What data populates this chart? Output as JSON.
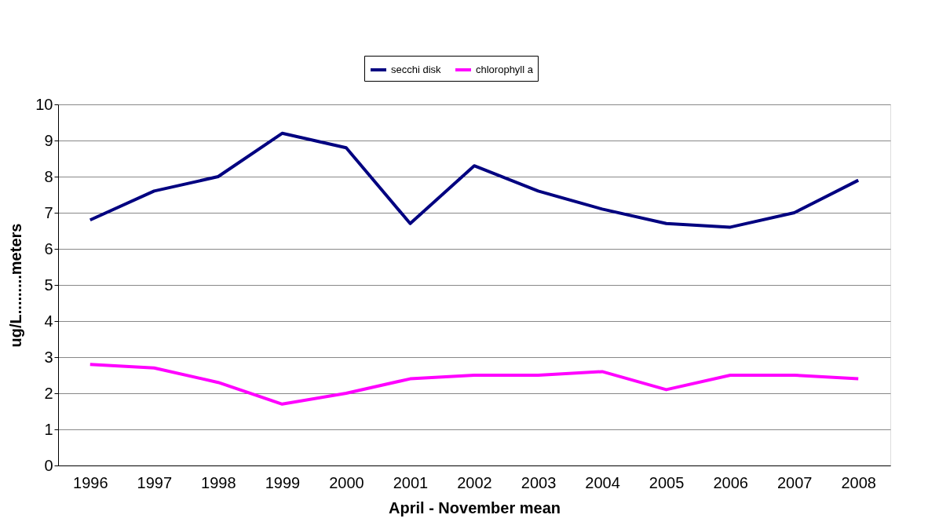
{
  "chart_data": {
    "type": "line",
    "categories": [
      "1996",
      "1997",
      "1998",
      "1999",
      "2000",
      "2001",
      "2002",
      "2003",
      "2004",
      "2005",
      "2006",
      "2007",
      "2008"
    ],
    "series": [
      {
        "name": "secchi disk",
        "color": "#000080",
        "values": [
          6.8,
          7.6,
          8.0,
          9.2,
          8.8,
          6.7,
          8.3,
          7.6,
          7.1,
          6.7,
          6.6,
          7.0,
          7.9
        ]
      },
      {
        "name": "chlorophyll a",
        "color": "#ff00ff",
        "values": [
          2.8,
          2.7,
          2.3,
          1.7,
          2.0,
          2.4,
          2.5,
          2.5,
          2.6,
          2.1,
          2.5,
          2.5,
          2.4
        ]
      }
    ],
    "xlabel": "April - November mean",
    "ylabel": "ug/L.........meters",
    "ylim": [
      0,
      10
    ],
    "yticks": [
      0,
      1,
      2,
      3,
      4,
      5,
      6,
      7,
      8,
      9,
      10
    ],
    "grid": "y",
    "legend": "top",
    "marker": "none",
    "line_style": "solid"
  }
}
